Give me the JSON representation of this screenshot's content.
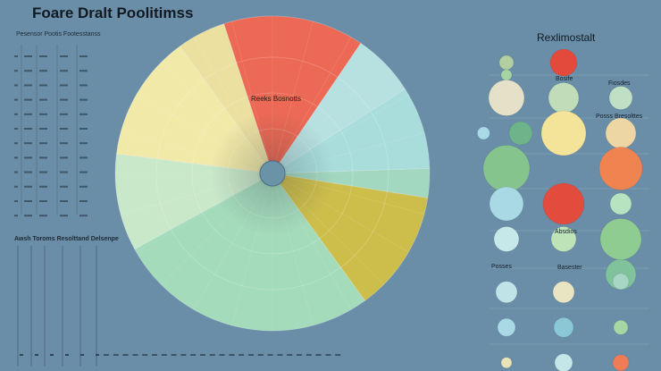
{
  "title": "Foare Dralt Poolitimss",
  "left_panel": {
    "title": "Pesensor Pootis Footesstanss",
    "title2": "Awsh Toroms Resolttand Delsenpe"
  },
  "right_panel": {
    "title": "Rexlimostalt",
    "labels": [
      "Bosife",
      "Fiosdes",
      "Posss Bresolttes",
      "Absdios",
      "Posses",
      "Basester"
    ]
  },
  "chart_data": [
    {
      "type": "pie",
      "title": "",
      "slice_label": "Reeks Bosnotts",
      "slices": [
        {
          "value": 14.5,
          "color": "#ec6a55"
        },
        {
          "value": 6.5,
          "color": "#b7e0e1"
        },
        {
          "value": 8.5,
          "color": "#a9dddc"
        },
        {
          "value": 3,
          "color": "#a2d7c0"
        },
        {
          "value": 12.5,
          "color": "#cdbe4c"
        },
        {
          "value": 27,
          "color": "#a4dbbb"
        },
        {
          "value": 10,
          "color": "#c9e8c9"
        },
        {
          "value": 13,
          "color": "#f1e9a8"
        },
        {
          "value": 5,
          "color": "#ece0a0"
        }
      ]
    },
    {
      "type": "scatter",
      "title": "Rexlimostalt",
      "points": [
        {
          "col": 1,
          "row": 1,
          "r": 8,
          "color": "#b2cfa2"
        },
        {
          "col": 1,
          "row": 1.35,
          "r": 6,
          "color": "#a7d5a0"
        },
        {
          "col": 2,
          "row": 1,
          "r": 15,
          "color": "#e44a3c"
        },
        {
          "col": 1,
          "row": 2,
          "r": 20,
          "color": "#e5e0c8"
        },
        {
          "col": 2,
          "row": 2,
          "r": 17,
          "color": "#c0dcb9"
        },
        {
          "col": 3,
          "row": 2,
          "r": 13,
          "color": "#bfe0c4"
        },
        {
          "col": 0.6,
          "row": 3,
          "r": 7,
          "color": "#a9d9e4"
        },
        {
          "col": 1.25,
          "row": 3,
          "r": 13,
          "color": "#6db48b"
        },
        {
          "col": 2,
          "row": 3,
          "r": 25,
          "color": "#f4e49a"
        },
        {
          "col": 3,
          "row": 3,
          "r": 17,
          "color": "#eed5a4"
        },
        {
          "col": 1,
          "row": 4,
          "r": 26,
          "color": "#86c48e"
        },
        {
          "col": 3,
          "row": 4,
          "r": 24,
          "color": "#f08451"
        },
        {
          "col": 1,
          "row": 5,
          "r": 19,
          "color": "#a9d9e4"
        },
        {
          "col": 2,
          "row": 5,
          "r": 23,
          "color": "#e34b3c"
        },
        {
          "col": 3,
          "row": 5,
          "r": 12,
          "color": "#b7e3c0"
        },
        {
          "col": 1,
          "row": 6,
          "r": 14,
          "color": "#c6e8e8"
        },
        {
          "col": 2,
          "row": 6,
          "r": 14,
          "color": "#bfe3b9"
        },
        {
          "col": 3,
          "row": 6,
          "r": 23,
          "color": "#8fcc92"
        },
        {
          "col": 3,
          "row": 7,
          "r": 17,
          "color": "#7fc29c"
        },
        {
          "col": 3,
          "row": 7.2,
          "r": 9,
          "color": "#a8d6c4"
        },
        {
          "col": 1,
          "row": 7.5,
          "r": 12,
          "color": "#bfe3e6"
        },
        {
          "col": 2,
          "row": 7.5,
          "r": 12,
          "color": "#e9e5c2"
        },
        {
          "col": 1,
          "row": 8.5,
          "r": 10,
          "color": "#a9d9e4"
        },
        {
          "col": 2,
          "row": 8.5,
          "r": 11,
          "color": "#8bc8d6"
        },
        {
          "col": 3,
          "row": 8.5,
          "r": 8,
          "color": "#a6d6a3"
        },
        {
          "col": 1,
          "row": 9.5,
          "r": 6,
          "color": "#e9e3b7"
        },
        {
          "col": 2,
          "row": 9.5,
          "r": 10,
          "color": "#c5e6e8"
        },
        {
          "col": 3,
          "row": 9.5,
          "r": 9,
          "color": "#f07c57"
        }
      ]
    }
  ]
}
